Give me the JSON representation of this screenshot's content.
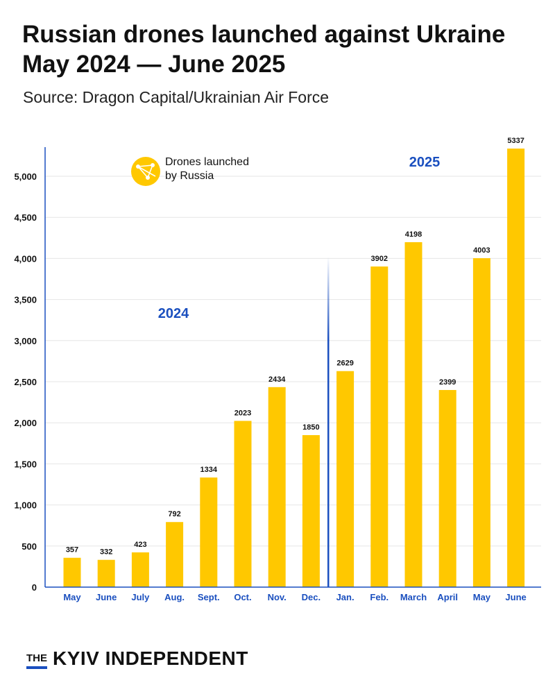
{
  "title": "Russian drones launched against Ukraine May 2024 — June 2025",
  "subtitle": "Source: Dragon Capital/Ukrainian Air Force",
  "brand": {
    "prefix": "THE",
    "name": "KYIV INDEPENDENT"
  },
  "chart_data": {
    "type": "bar",
    "categories": [
      "May",
      "June",
      "July",
      "Aug.",
      "Sept.",
      "Oct.",
      "Nov.",
      "Dec.",
      "Jan.",
      "Feb.",
      "March",
      "April",
      "May",
      "June"
    ],
    "series": [
      {
        "name": "Drones launched by Russia",
        "values": [
          357,
          332,
          423,
          792,
          1334,
          2023,
          2434,
          1850,
          2629,
          3902,
          4198,
          2399,
          4003,
          5337
        ]
      }
    ],
    "year_labels": [
      {
        "text": "2024",
        "categories": [
          "May",
          "June",
          "July",
          "Aug.",
          "Sept.",
          "Oct.",
          "Nov.",
          "Dec."
        ]
      },
      {
        "text": "2025",
        "categories": [
          "Jan.",
          "Feb.",
          "March",
          "April",
          "May",
          "June"
        ]
      }
    ],
    "legend": {
      "label_lines": [
        "Drones launched",
        "by Russia"
      ],
      "placement": "top-left"
    },
    "y_ticks": [
      0,
      500,
      1000,
      1500,
      2000,
      2500,
      3000,
      3500,
      4000,
      4500,
      5000
    ],
    "y_tick_labels": [
      "0",
      "500",
      "1,000",
      "1,500",
      "2,000",
      "2,500",
      "3,000",
      "3,500",
      "4,000",
      "4,500",
      "5,000"
    ],
    "ylim": [
      0,
      5400
    ],
    "grid": true,
    "colors": {
      "bar": "#ffc800",
      "axis": "#1a4fbf",
      "year": "#1a4fbf",
      "grid": "#e6e6e6",
      "text": "#111111"
    }
  }
}
